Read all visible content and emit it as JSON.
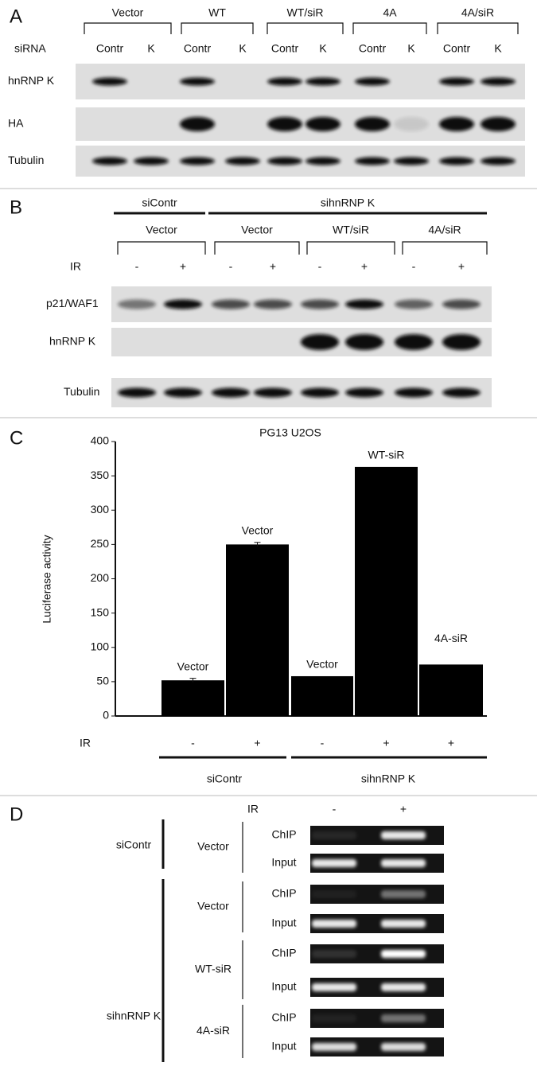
{
  "panel_a": {
    "label": "A",
    "groups": [
      "Vector",
      "WT",
      "WT/siR",
      "4A",
      "4A/siR"
    ],
    "sirna_label": "siRNA",
    "lanes": [
      "Contr",
      "K",
      "Contr",
      "K",
      "Contr",
      "K",
      "Contr",
      "K",
      "Contr",
      "K"
    ],
    "rows": [
      "hnRNP K",
      "HA",
      "Tubulin"
    ]
  },
  "panel_b": {
    "label": "B",
    "treatments": [
      "siContr",
      "sihnRNP K"
    ],
    "groups": [
      "Vector",
      "Vector",
      "WT/siR",
      "4A/siR"
    ],
    "ir_label": "IR",
    "ir": [
      "-",
      "+",
      "-",
      "+",
      "-",
      "+",
      "-",
      "+"
    ],
    "rows": [
      "p21/WAF1",
      "hnRNP K",
      "Tubulin"
    ]
  },
  "chart_data": {
    "type": "bar",
    "panel_label": "C",
    "title": "PG13 U2OS",
    "y_label": "Luciferase activity",
    "category_axis_label": "IR",
    "categories": [
      "-",
      "+",
      "-",
      "+",
      "+"
    ],
    "groups": [
      "siContr",
      "sihnRNP K"
    ],
    "bar_labels": [
      "Vector",
      "Vector",
      "Vector",
      "WT-siR",
      "4A-siR"
    ],
    "values": [
      52,
      250,
      58,
      363,
      75
    ],
    "errors": [
      3,
      3,
      null,
      null,
      null
    ],
    "color": "#000000",
    "ylim": [
      0,
      400
    ],
    "yticks": [
      0,
      50,
      100,
      150,
      200,
      250,
      300,
      350,
      400
    ]
  },
  "panel_d": {
    "label": "D",
    "ir_label": "IR",
    "ir": [
      "-",
      "+"
    ],
    "treatments": [
      "siContr",
      "sihnRNP K"
    ],
    "constructs": [
      "Vector",
      "Vector",
      "WT-siR",
      "4A-siR"
    ],
    "assays": [
      [
        "ChIP",
        "Input"
      ],
      [
        "ChIP",
        "Input"
      ],
      [
        "ChIP",
        "Input"
      ],
      [
        "ChIP",
        "Input"
      ]
    ]
  }
}
